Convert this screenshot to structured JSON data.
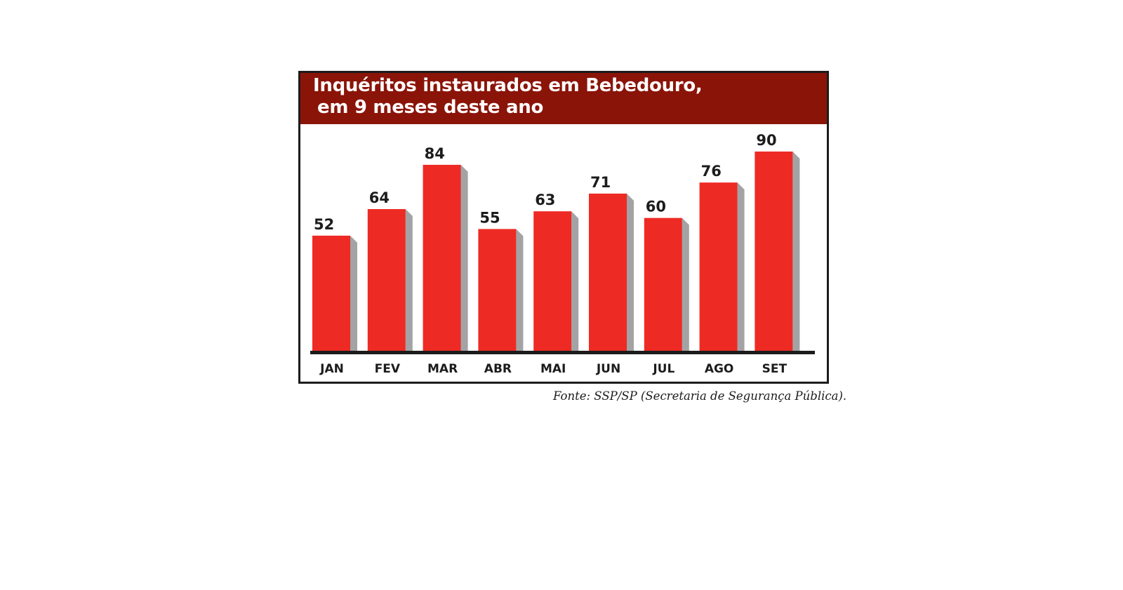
{
  "chart_data": {
    "type": "bar",
    "title": [
      "Inquéritos instaurados em Bebedouro,",
      "em 9 meses deste ano"
    ],
    "categories": [
      "JAN",
      "FEV",
      "MAR",
      "ABR",
      "MAI",
      "JUN",
      "JUL",
      "AGO",
      "SET"
    ],
    "values": [
      52,
      64,
      84,
      55,
      63,
      71,
      60,
      76,
      90
    ],
    "data_labels": [
      "52",
      "64",
      "84",
      "55",
      "63",
      "71",
      "60",
      "76",
      "90"
    ],
    "xlabel": "",
    "ylabel": "",
    "ylim": [
      0,
      90
    ],
    "grid": false,
    "legend": "none",
    "source": "Fonte: SSP/SP (Secretaria de Segurança Pública).",
    "colors": {
      "bar": "#ee2a24",
      "bar_shadow": "#a3a3a5",
      "header": "#8b1408",
      "axis": "#1c1c1c",
      "text": "#1c1c1c"
    }
  }
}
